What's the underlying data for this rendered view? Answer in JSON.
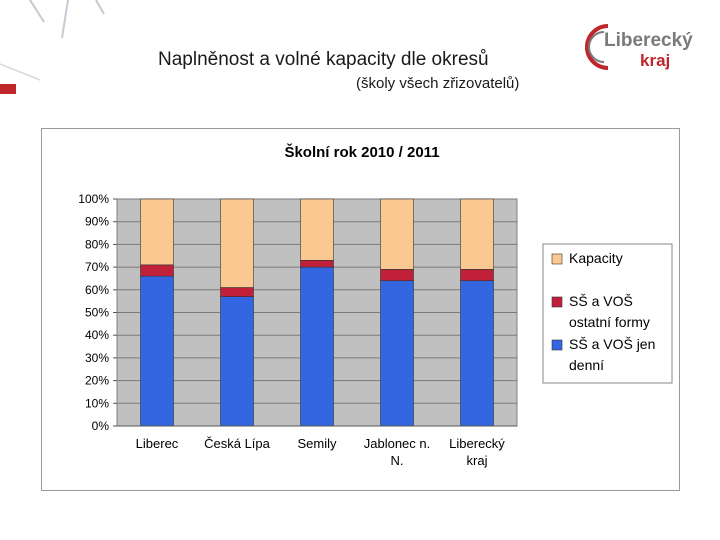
{
  "slide": {
    "title": "Naplněnost a volné kapacity dle okresů",
    "subtitle": "(školy všech zřizovatelů)"
  },
  "logo": {
    "line1": "Liberecký",
    "line2": "kraj",
    "color": "#c0272d"
  },
  "colors": {
    "kapacity": "#FAC890",
    "ostatni": "#C0203A",
    "denni": "#3366E0",
    "plot_bg": "#C0C0C0",
    "accent_red": "#C0272D"
  },
  "chart_data": {
    "type": "bar",
    "stacked": true,
    "title": "Školní rok 2010 / 2011",
    "categories": [
      [
        "Liberec"
      ],
      [
        "Česká Lípa"
      ],
      [
        "Semily"
      ],
      [
        "Jablonec n.",
        "N."
      ],
      [
        "Liberecký",
        "kraj"
      ]
    ],
    "series": [
      {
        "name": "SŠ a VOŠ jen denní",
        "color": "#3366E0",
        "values": [
          66,
          57,
          70,
          64,
          64
        ]
      },
      {
        "name": "SŠ a VOŠ ostatní formy",
        "color": "#C0203A",
        "values": [
          5,
          4,
          3,
          5,
          5
        ]
      },
      {
        "name": "Kapacity",
        "color": "#FAC890",
        "values": [
          29,
          39,
          27,
          31,
          31
        ]
      }
    ],
    "y_ticks": [
      "0%",
      "10%",
      "20%",
      "30%",
      "40%",
      "50%",
      "60%",
      "70%",
      "80%",
      "90%",
      "100%"
    ],
    "ylim": [
      0,
      100
    ],
    "grid": true,
    "legend": {
      "position": "right",
      "entries": [
        {
          "lines": [
            "Kapacity"
          ],
          "color": "#FAC890"
        },
        {
          "lines": [
            "SŠ a VOŠ",
            "ostatní formy"
          ],
          "color": "#C0203A"
        },
        {
          "lines": [
            "SŠ a VOŠ jen",
            "denní"
          ],
          "color": "#3366E0"
        }
      ]
    }
  }
}
